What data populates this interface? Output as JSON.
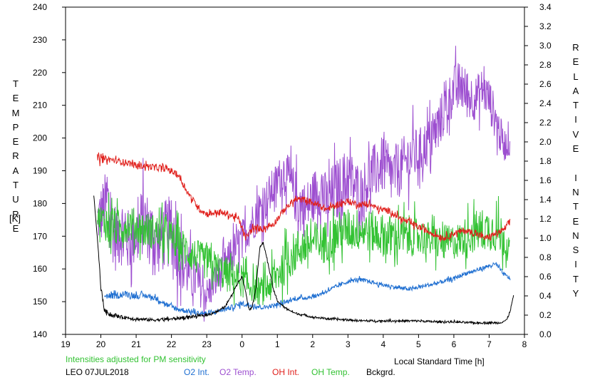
{
  "chart_data": {
    "type": "line",
    "title": "",
    "xlabel": "Local Standard Time [h]",
    "ylabel_left_letters": [
      "T",
      "E",
      "M",
      "P",
      "E",
      "R",
      "A",
      "T",
      "U",
      "R",
      "E"
    ],
    "ylabel_left_unit": "[K]",
    "ylabel_right_letters": [
      "R",
      "E",
      "L",
      "A",
      "T",
      "I",
      "V",
      "E",
      "",
      "I",
      "N",
      "T",
      "E",
      "N",
      "S",
      "I",
      "T",
      "Y"
    ],
    "note": "Intensities adjusted for PM sensitivity",
    "station_date": "LEO 07JUL2018",
    "xlim": [
      19,
      8
    ],
    "x_ticks": [
      "19",
      "20",
      "21",
      "22",
      "23",
      "0",
      "1",
      "2",
      "3",
      "4",
      "5",
      "6",
      "7",
      "8"
    ],
    "ylim_left": [
      140,
      240
    ],
    "y_ticks_left": [
      "140",
      "150",
      "160",
      "170",
      "180",
      "190",
      "200",
      "210",
      "220",
      "230",
      "240"
    ],
    "ylim_right": [
      0.0,
      3.4
    ],
    "y_ticks_right": [
      "0.0",
      "0.2",
      "0.4",
      "0.6",
      "0.8",
      "1.0",
      "1.2",
      "1.4",
      "1.6",
      "1.8",
      "2.0",
      "2.2",
      "2.4",
      "2.6",
      "2.8",
      "3.0",
      "3.2",
      "3.4"
    ],
    "legend": [
      {
        "name": "O2 Int.",
        "color": "#1f6fd1"
      },
      {
        "name": "O2 Temp.",
        "color": "#9d4fd0"
      },
      {
        "name": "OH Int.",
        "color": "#e0201c"
      },
      {
        "name": "OH Temp.",
        "color": "#33c233"
      },
      {
        "name": "Bckgrd.",
        "color": "#000000"
      }
    ],
    "series": [
      {
        "name": "O2 Temp.",
        "axis": "left",
        "color": "#9d4fd0",
        "x": [
          19.9,
          20.2,
          20.4,
          20.6,
          20.8,
          21.0,
          21.2,
          21.4,
          21.6,
          21.8,
          22.0,
          22.2,
          22.4,
          22.6,
          22.8,
          23.0,
          1.2,
          1.4,
          1.6,
          1.8,
          2.0,
          2.2,
          2.4,
          2.6,
          2.8,
          3.0,
          3.2,
          3.4,
          3.6,
          3.8,
          4.0,
          4.2,
          4.4,
          4.6,
          4.8,
          5.0,
          5.2,
          5.4,
          5.6,
          5.8,
          6.0,
          6.2,
          6.4,
          6.6,
          6.8,
          7.0,
          7.2,
          7.4,
          7.6
        ],
        "y": [
          175,
          180,
          170,
          172,
          168,
          171,
          175,
          172,
          168,
          170,
          172,
          165,
          160,
          158,
          155,
          152,
          190,
          185,
          180,
          178,
          182,
          185,
          180,
          183,
          185,
          188,
          185,
          183,
          188,
          190,
          192,
          188,
          190,
          192,
          195,
          195,
          198,
          200,
          205,
          210,
          215,
          216,
          213,
          212,
          215,
          212,
          205,
          198,
          198
        ],
        "spread": [
          14,
          22,
          20,
          20,
          18,
          18,
          20,
          18,
          18,
          20,
          20,
          18,
          16,
          14,
          12,
          10,
          12,
          14,
          16,
          16,
          14,
          16,
          16,
          18,
          18,
          18,
          16,
          16,
          16,
          16,
          16,
          16,
          16,
          16,
          16,
          14,
          14,
          14,
          14,
          14,
          14,
          14,
          14,
          12,
          12,
          12,
          12,
          10,
          6
        ]
      },
      {
        "name": "OH Temp.",
        "axis": "left",
        "color": "#33c233",
        "x": [
          19.9,
          20.2,
          20.5,
          20.8,
          21.0,
          21.3,
          21.6,
          21.9,
          22.2,
          22.5,
          22.8,
          23.0,
          23.3,
          23.6,
          23.9,
          0.2,
          0.5,
          0.8,
          1.1,
          1.4,
          1.7,
          2.0,
          2.3,
          2.6,
          2.9,
          3.2,
          3.5,
          3.8,
          4.1,
          4.4,
          4.7,
          5.0,
          5.3,
          5.6,
          5.9,
          6.2,
          6.5,
          6.8,
          7.1,
          7.4,
          7.6
        ],
        "y": [
          176,
          174,
          172,
          174,
          173,
          172,
          171,
          170,
          168,
          165,
          163,
          162,
          160,
          158,
          157,
          155,
          153,
          155,
          160,
          164,
          167,
          168,
          168,
          170,
          172,
          172,
          172,
          171,
          170,
          170,
          170,
          170,
          169,
          168,
          168,
          169,
          171,
          172,
          172,
          170,
          165
        ],
        "spread": [
          6,
          12,
          10,
          10,
          10,
          10,
          10,
          10,
          10,
          10,
          10,
          10,
          10,
          10,
          10,
          8,
          8,
          10,
          12,
          12,
          12,
          12,
          12,
          12,
          12,
          12,
          12,
          12,
          12,
          12,
          12,
          10,
          10,
          10,
          10,
          10,
          12,
          12,
          12,
          12,
          6
        ]
      },
      {
        "name": "OH Int.",
        "axis": "right",
        "color": "#e0201c",
        "x": [
          19.9,
          20.0,
          20.2,
          20.5,
          20.8,
          21.0,
          21.3,
          21.6,
          21.9,
          22.2,
          22.5,
          22.8,
          23.0,
          23.3,
          23.6,
          23.9,
          0.1,
          0.3,
          0.6,
          0.9,
          1.2,
          1.5,
          1.8,
          2.1,
          2.4,
          2.7,
          3.0,
          3.3,
          3.6,
          3.9,
          4.2,
          4.5,
          4.8,
          5.1,
          5.4,
          5.7,
          6.0,
          6.3,
          6.6,
          6.9,
          7.2,
          7.4,
          7.6
        ],
        "y": [
          1.85,
          1.82,
          1.82,
          1.8,
          1.78,
          1.75,
          1.75,
          1.73,
          1.72,
          1.65,
          1.45,
          1.3,
          1.25,
          1.27,
          1.25,
          1.2,
          1.0,
          1.1,
          1.1,
          1.15,
          1.3,
          1.4,
          1.4,
          1.35,
          1.3,
          1.35,
          1.38,
          1.35,
          1.35,
          1.3,
          1.28,
          1.2,
          1.15,
          1.1,
          1.05,
          1.0,
          1.05,
          1.08,
          1.05,
          1.0,
          1.05,
          1.08,
          1.18
        ],
        "spread": [
          0.1,
          0.08,
          0.06,
          0.06,
          0.06,
          0.06,
          0.06,
          0.06,
          0.06,
          0.06,
          0.06,
          0.06,
          0.06,
          0.06,
          0.06,
          0.06,
          0.06,
          0.06,
          0.06,
          0.06,
          0.06,
          0.06,
          0.06,
          0.06,
          0.06,
          0.06,
          0.06,
          0.06,
          0.06,
          0.06,
          0.06,
          0.06,
          0.06,
          0.06,
          0.06,
          0.06,
          0.06,
          0.06,
          0.06,
          0.06,
          0.06,
          0.06,
          0.06
        ]
      },
      {
        "name": "O2 Int.",
        "axis": "right",
        "color": "#1f6fd1",
        "x": [
          20.1,
          20.4,
          20.7,
          21.0,
          21.3,
          21.6,
          21.9,
          22.2,
          22.5,
          22.8,
          23.1,
          23.4,
          23.7,
          0.0,
          0.3,
          0.6,
          0.9,
          1.2,
          1.5,
          1.8,
          2.1,
          2.4,
          2.7,
          3.0,
          3.3,
          3.6,
          3.9,
          4.2,
          4.5,
          4.8,
          5.1,
          5.4,
          5.7,
          6.0,
          6.3,
          6.6,
          6.9,
          7.2,
          7.4,
          7.6
        ],
        "y": [
          0.4,
          0.4,
          0.42,
          0.4,
          0.4,
          0.37,
          0.3,
          0.26,
          0.24,
          0.22,
          0.22,
          0.25,
          0.28,
          0.32,
          0.3,
          0.28,
          0.3,
          0.33,
          0.37,
          0.38,
          0.4,
          0.45,
          0.5,
          0.55,
          0.57,
          0.55,
          0.52,
          0.5,
          0.48,
          0.47,
          0.5,
          0.52,
          0.55,
          0.58,
          0.63,
          0.66,
          0.7,
          0.73,
          0.63,
          0.58
        ],
        "spread": [
          0.06,
          0.06,
          0.06,
          0.06,
          0.05,
          0.05,
          0.05,
          0.05,
          0.05,
          0.04,
          0.04,
          0.04,
          0.05,
          0.05,
          0.05,
          0.04,
          0.04,
          0.04,
          0.04,
          0.04,
          0.04,
          0.04,
          0.04,
          0.04,
          0.04,
          0.04,
          0.04,
          0.04,
          0.04,
          0.04,
          0.04,
          0.04,
          0.04,
          0.04,
          0.04,
          0.04,
          0.04,
          0.04,
          0.04,
          0.04
        ]
      },
      {
        "name": "Bckgrd.",
        "axis": "right",
        "color": "#000000",
        "x": [
          19.8,
          19.9,
          20.0,
          20.1,
          20.3,
          20.6,
          21.0,
          21.5,
          22.0,
          22.5,
          23.0,
          23.3,
          23.5,
          23.7,
          23.8,
          23.9,
          0.0,
          0.1,
          0.2,
          0.3,
          0.4,
          0.5,
          0.6,
          0.7,
          0.8,
          0.9,
          1.0,
          1.2,
          1.5,
          2.0,
          2.5,
          3.0,
          3.5,
          4.0,
          4.5,
          5.0,
          5.5,
          6.0,
          6.5,
          7.0,
          7.3,
          7.5,
          7.6,
          7.7
        ],
        "y": [
          1.45,
          1.0,
          0.5,
          0.25,
          0.2,
          0.18,
          0.16,
          0.15,
          0.16,
          0.18,
          0.2,
          0.24,
          0.28,
          0.4,
          0.48,
          0.55,
          0.6,
          0.45,
          0.25,
          0.3,
          0.5,
          0.9,
          0.95,
          0.8,
          0.62,
          0.45,
          0.35,
          0.28,
          0.22,
          0.18,
          0.16,
          0.15,
          0.14,
          0.14,
          0.14,
          0.14,
          0.13,
          0.13,
          0.12,
          0.12,
          0.12,
          0.15,
          0.25,
          0.42
        ],
        "spread": [
          0.01,
          0.01,
          0.04,
          0.04,
          0.04,
          0.03,
          0.03,
          0.03,
          0.03,
          0.03,
          0.02,
          0.02,
          0.02,
          0.02,
          0.02,
          0.02,
          0.02,
          0.02,
          0.02,
          0.02,
          0.02,
          0.02,
          0.02,
          0.02,
          0.02,
          0.02,
          0.02,
          0.02,
          0.02,
          0.02,
          0.02,
          0.02,
          0.02,
          0.02,
          0.02,
          0.02,
          0.02,
          0.02,
          0.02,
          0.02,
          0.02,
          0.02,
          0.02,
          0.02
        ]
      }
    ]
  }
}
